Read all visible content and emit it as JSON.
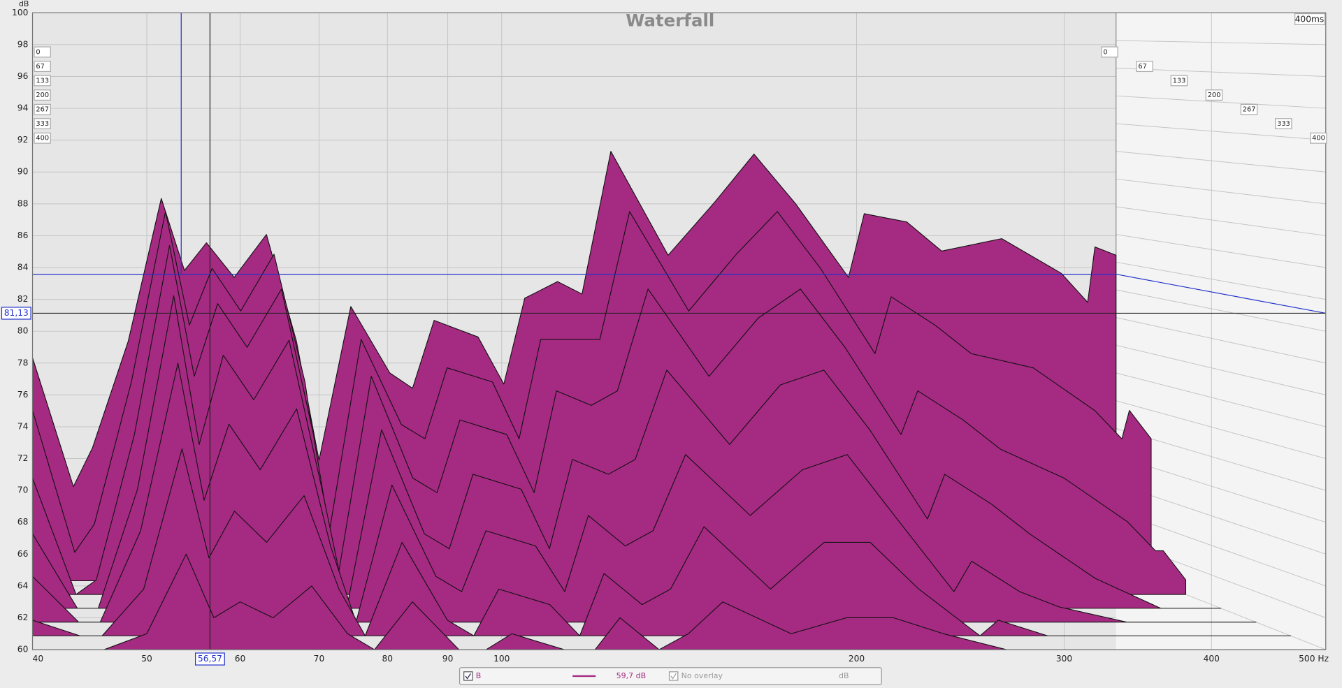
{
  "chart_data": {
    "type": "waterfall",
    "title": "Waterfall",
    "y_label": "dB",
    "depth_label": "400ms",
    "log_x": true,
    "grid": true,
    "xlim": [
      40,
      500
    ],
    "xticks": [
      40,
      50,
      60,
      70,
      80,
      90,
      100,
      200,
      300,
      400,
      {
        "value": 500,
        "label": "500 Hz"
      }
    ],
    "ylim": [
      60,
      100
    ],
    "yticks": [
      60,
      62,
      64,
      66,
      68,
      70,
      72,
      74,
      76,
      78,
      80,
      82,
      84,
      86,
      88,
      90,
      92,
      94,
      96,
      98,
      100
    ],
    "zlim": [
      0,
      400
    ],
    "zticks": [
      0,
      67,
      133,
      200,
      267,
      333,
      400
    ],
    "fill_color": "#a52a82",
    "outline_color": "#111111",
    "x": [
      40,
      44,
      46,
      50,
      54,
      57,
      60,
      64,
      69,
      74,
      78,
      84,
      92,
      97,
      102,
      113,
      120,
      126,
      136,
      144,
      154,
      176,
      196,
      215,
      237,
      268,
      278,
      307,
      333,
      383,
      440,
      468,
      476,
      500
    ],
    "slices": [
      {
        "time": 0,
        "values": [
          75.1,
          65.8,
          68.6,
          76.3,
          86.6,
          81.4,
          83.4,
          80.9,
          84,
          76.3,
          67.7,
          78.8,
          74,
          72.9,
          77.8,
          76.6,
          73.2,
          79.4,
          80.6,
          79.7,
          90,
          82.5,
          86.3,
          89.8,
          86.2,
          80.9,
          85.5,
          84.9,
          82.8,
          83.7,
          81.2,
          79.1,
          83.1,
          82.5
        ]
      },
      {
        "time": 67,
        "values": [
          72,
          62,
          64,
          74,
          86,
          78,
          82,
          79,
          83,
          74,
          63,
          77,
          71,
          70,
          75,
          74,
          70,
          77,
          77,
          77,
          86,
          79,
          83,
          86,
          82,
          76,
          80,
          78,
          76,
          75,
          72,
          70,
          72,
          70
        ]
      },
      {
        "time": 133,
        "values": [
          68,
          60,
          61,
          71,
          84,
          75,
          80,
          77,
          81,
          71,
          61,
          75,
          68,
          67,
          72,
          71,
          67,
          74,
          73,
          74,
          81,
          75,
          79,
          81,
          77,
          71,
          74,
          72,
          70,
          68,
          65,
          63,
          63,
          61
        ]
      },
      {
        "time": 200,
        "values": [
          65,
          60,
          60,
          68,
          81,
          71,
          77,
          74,
          78,
          68,
          60,
          72,
          65,
          64,
          69,
          68,
          64,
          70,
          69,
          70,
          76,
          71,
          75,
          76,
          72,
          66,
          69,
          67,
          65,
          62,
          60,
          60,
          60,
          60
        ]
      },
      {
        "time": 267,
        "values": [
          63,
          60,
          60,
          66,
          77,
          68,
          73,
          70,
          74,
          65,
          60,
          69,
          63,
          62,
          66,
          65,
          62,
          67,
          65,
          66,
          71,
          67,
          70,
          71,
          67,
          62,
          64,
          62,
          61,
          60,
          60,
          60,
          60,
          60
        ]
      },
      {
        "time": 333,
        "values": [
          61,
          60,
          60,
          63,
          72,
          65,
          68,
          66,
          69,
          63,
          60,
          66,
          61,
          60,
          63,
          62,
          60,
          64,
          62,
          63,
          67,
          63,
          66,
          66,
          63,
          60,
          61,
          60,
          60,
          60,
          60,
          60,
          60,
          60
        ]
      },
      {
        "time": 400,
        "values": [
          60,
          60,
          60,
          61,
          66,
          62,
          63,
          62,
          64,
          61,
          60,
          63,
          60,
          60,
          61,
          60,
          60,
          62,
          60,
          61,
          63,
          61,
          62,
          62,
          61,
          60,
          60,
          60,
          60,
          60,
          60,
          60,
          60,
          60
        ]
      }
    ],
    "cursor": {
      "x": {
        "value": 56.57,
        "label": "56,57"
      },
      "y": {
        "value": 81.13,
        "label": "81,13"
      }
    },
    "legend": {
      "measurement": "B",
      "color": "#a52a82",
      "level": "59,7 dB",
      "overlay": "No overlay",
      "unit": "dB"
    }
  }
}
